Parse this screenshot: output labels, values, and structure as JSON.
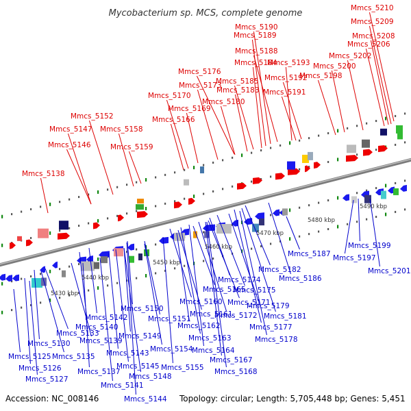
{
  "title": "Mycobacterium sp. MCS, complete genome",
  "footer": {
    "accession": "Accession: NC_008146",
    "summary": "Topology: circular; Length: 5,705,448 bp; Genes: 5,451"
  },
  "colors": {
    "top_labels": "#dd0000",
    "bottom_labels": "#0000cc",
    "backbone": "#888888",
    "ticks": "#009900"
  },
  "kbp_labels": [
    "5430 kbp",
    "5440 kbp",
    "5450 kbp",
    "5460 kbp",
    "5470 kbp",
    "5480 kbp",
    "5490 kbp"
  ],
  "top_labels": [
    "Mmcs_5210",
    "Mmcs_5209",
    "Mmcs_5208",
    "Mmcs_5206",
    "Mmcs_5202",
    "Mmcs_5190",
    "Mmcs_5189",
    "Mmcs_5188",
    "Mmcs_5193",
    "Mmcs_5184",
    "Mmcs_5200",
    "Mmcs_5176",
    "Mmcs_5185",
    "Mmcs_5192",
    "Mmcs_5198",
    "Mmcs_5173",
    "Mmcs_5183",
    "Mmcs_5191",
    "Mmcs_5170",
    "Mmcs_5180",
    "Mmcs_5169",
    "Mmcs_5166",
    "Mmcs_5152",
    "Mmcs_5147",
    "Mmcs_5158",
    "Mmcs_5146",
    "Mmcs_5159",
    "Mmcs_5138"
  ],
  "bottom_labels": [
    "Mmcs_5187",
    "Mmcs_5199",
    "Mmcs_5197",
    "Mmcs_5201",
    "Mmcs_5182",
    "Mmcs_5186",
    "Mmcs_5174",
    "Mmcs_5175",
    "Mmcs_5160",
    "Mmcs_5165",
    "Mmcs_5171",
    "Mmcs_5150",
    "Mmcs_5179",
    "Mmcs_5161",
    "Mmcs_5172",
    "Mmcs_5181",
    "Mmcs_5142",
    "Mmcs_5151",
    "Mmcs_5162",
    "Mmcs_5140",
    "Mmcs_5177",
    "Mmcs_5133",
    "Mmcs_5149",
    "Mmcs_5163",
    "Mmcs_5139",
    "Mmcs_5178",
    "Mmcs_5130",
    "Mmcs_5154",
    "Mmcs_5164",
    "Mmcs_5135",
    "Mmcs_5143",
    "Mmcs_5125",
    "Mmcs_5167",
    "Mmcs_5145",
    "Mmcs_5155",
    "Mmcs_5126",
    "Mmcs_5137",
    "Mmcs_5168",
    "Mmcs_5148",
    "Mmcs_5127",
    "Mmcs_5141",
    "Mmcs_5144"
  ]
}
